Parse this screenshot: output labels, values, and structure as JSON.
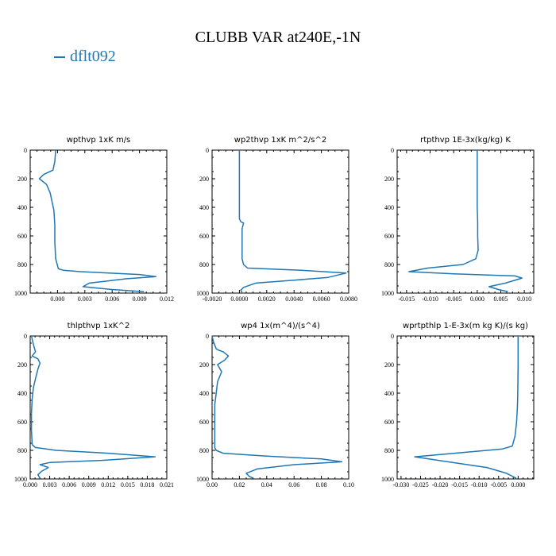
{
  "title": "CLUBB VAR at240E,-1N",
  "legend": {
    "label": "dflt092",
    "color": "#1f77b4"
  },
  "chart_data": [
    {
      "type": "line",
      "title": "wpthvp   1xK m/s",
      "xlim": [
        -0.003,
        0.012
      ],
      "ylim": [
        0,
        1000
      ],
      "y_inverted": true,
      "xticks": [
        {
          "v": 0,
          "label": "0.000"
        },
        {
          "v": 0.003,
          "label": "0.003"
        },
        {
          "v": 0.006,
          "label": "0.006"
        },
        {
          "v": 0.009,
          "label": "0.009"
        },
        {
          "v": 0.012,
          "label": "0.012"
        }
      ],
      "yticks": [
        0,
        200,
        400,
        600,
        800,
        1000
      ],
      "series": [
        {
          "color": "#1f77b4",
          "x": [
            -0.0002,
            -0.0003,
            -0.0005,
            -0.0015,
            -0.002,
            -0.0012,
            -0.0008,
            -0.0006,
            -0.0004,
            -0.0003,
            -0.0003,
            -0.0002,
            0.0001,
            0.0006,
            0.0025,
            0.009,
            0.0108,
            0.0075,
            0.0035,
            0.0028,
            0.006,
            0.0095
          ],
          "y": [
            0,
            80,
            140,
            170,
            200,
            240,
            300,
            360,
            420,
            520,
            640,
            760,
            830,
            840,
            850,
            870,
            885,
            900,
            930,
            955,
            975,
            990
          ]
        }
      ]
    },
    {
      "type": "line",
      "title": "wp2thvp   1xK m^2/s^2",
      "xlim": [
        -0.002,
        0.008
      ],
      "ylim": [
        0,
        1000
      ],
      "y_inverted": true,
      "xticks": [
        {
          "v": -0.002,
          "label": "-0.0020"
        },
        {
          "v": 0,
          "label": "0.0000"
        },
        {
          "v": 0.002,
          "label": "0.0020"
        },
        {
          "v": 0.004,
          "label": "0.0040"
        },
        {
          "v": 0.006,
          "label": "0.0060"
        },
        {
          "v": 0.008,
          "label": "0.0080"
        }
      ],
      "yticks": [
        0,
        200,
        400,
        600,
        800,
        1000
      ],
      "series": [
        {
          "color": "#1f77b4",
          "x": [
            0,
            0,
            0,
            0.0001,
            0.0003,
            0.0002,
            0.0002,
            0.0002,
            0.0003,
            0.0006,
            0.0045,
            0.0078,
            0.0065,
            0.004,
            0.0012,
            0.0003,
            0.0001,
            0.0002
          ],
          "y": [
            0,
            200,
            480,
            500,
            510,
            550,
            650,
            760,
            800,
            825,
            840,
            860,
            890,
            910,
            930,
            960,
            980,
            995
          ]
        }
      ]
    },
    {
      "type": "line",
      "title": "rtpthvp   1E-3x(kg/kg) K",
      "xlim": [
        -0.017,
        0.012
      ],
      "ylim": [
        0,
        1000
      ],
      "y_inverted": true,
      "xticks": [
        {
          "v": -0.015,
          "label": "-0.015"
        },
        {
          "v": -0.01,
          "label": "-0.010"
        },
        {
          "v": -0.005,
          "label": "-0.005"
        },
        {
          "v": 0,
          "label": "0.000"
        },
        {
          "v": 0.005,
          "label": "0.005"
        },
        {
          "v": 0.01,
          "label": "0.010"
        }
      ],
      "yticks": [
        0,
        200,
        400,
        600,
        800,
        1000
      ],
      "series": [
        {
          "color": "#1f77b4",
          "x": [
            0,
            0,
            0,
            0.0001,
            0.0001,
            0.0002,
            -0.0003,
            -0.003,
            -0.0105,
            -0.0145,
            -0.005,
            0.008,
            0.0095,
            0.006,
            0.0025,
            0.0045,
            0.0065
          ],
          "y": [
            0,
            200,
            400,
            500,
            600,
            700,
            760,
            800,
            825,
            850,
            865,
            880,
            895,
            930,
            955,
            975,
            990
          ]
        }
      ]
    },
    {
      "type": "line",
      "title": "thlpthvp   1xK^2",
      "xlim": [
        0,
        0.021
      ],
      "ylim": [
        0,
        1000
      ],
      "y_inverted": true,
      "xticks": [
        {
          "v": 0,
          "label": "0.000"
        },
        {
          "v": 0.003,
          "label": "0.003"
        },
        {
          "v": 0.006,
          "label": "0.006"
        },
        {
          "v": 0.009,
          "label": "0.009"
        },
        {
          "v": 0.012,
          "label": "0.012"
        },
        {
          "v": 0.015,
          "label": "0.015"
        },
        {
          "v": 0.018,
          "label": "0.018"
        },
        {
          "v": 0.021,
          "label": "0.021"
        }
      ],
      "yticks": [
        0,
        200,
        400,
        600,
        800,
        1000
      ],
      "series": [
        {
          "color": "#1f77b4",
          "x": [
            0.0002,
            0.0005,
            0.0008,
            0.0003,
            0.0012,
            0.0015,
            0.0012,
            0.0008,
            0.0005,
            0.0003,
            0.0002,
            0.0002,
            0.0003,
            0.0008,
            0.004,
            0.012,
            0.0192,
            0.011,
            0.003,
            0.0015,
            0.0028,
            0.0018,
            0.0012,
            0.0015
          ],
          "y": [
            0,
            60,
            110,
            140,
            160,
            190,
            230,
            300,
            360,
            440,
            540,
            660,
            760,
            780,
            800,
            820,
            845,
            870,
            885,
            900,
            920,
            945,
            970,
            995
          ]
        }
      ]
    },
    {
      "type": "line",
      "title": "wp4   1x(m^4)/(s^4)",
      "xlim": [
        0,
        0.1
      ],
      "ylim": [
        0,
        1000
      ],
      "y_inverted": true,
      "xticks": [
        {
          "v": 0,
          "label": "0.00"
        },
        {
          "v": 0.02,
          "label": "0.02"
        },
        {
          "v": 0.04,
          "label": "0.04"
        },
        {
          "v": 0.06,
          "label": "0.06"
        },
        {
          "v": 0.08,
          "label": "0.08"
        },
        {
          "v": 0.1,
          "label": "0.10"
        }
      ],
      "yticks": [
        0,
        200,
        400,
        600,
        800,
        1000
      ],
      "series": [
        {
          "color": "#1f77b4",
          "x": [
            0,
            0.001,
            0.003,
            0.005,
            0.008,
            0.012,
            0.009,
            0.004,
            0.007,
            0.004,
            0.003,
            0.002,
            0.002,
            0.002,
            0.002,
            0.002,
            0.003,
            0.008,
            0.04,
            0.08,
            0.095,
            0.06,
            0.033,
            0.025,
            0.027,
            0.03
          ],
          "y": [
            0,
            40,
            90,
            100,
            110,
            140,
            170,
            200,
            250,
            320,
            400,
            480,
            560,
            640,
            720,
            780,
            800,
            820,
            840,
            860,
            880,
            900,
            930,
            960,
            980,
            995
          ]
        }
      ]
    },
    {
      "type": "line",
      "title": "wprtpthlp   1-E-3x(m kg K)/(s kg)",
      "xlim": [
        -0.031,
        0.004
      ],
      "ylim": [
        0,
        1000
      ],
      "y_inverted": true,
      "xticks": [
        {
          "v": -0.03,
          "label": "-0.030"
        },
        {
          "v": -0.025,
          "label": "-0.025"
        },
        {
          "v": -0.02,
          "label": "-0.020"
        },
        {
          "v": -0.015,
          "label": "-0.015"
        },
        {
          "v": -0.01,
          "label": "-0.010"
        },
        {
          "v": -0.005,
          "label": "-0.005"
        },
        {
          "v": 0,
          "label": "0.000"
        }
      ],
      "yticks": [
        0,
        200,
        400,
        600,
        800,
        1000
      ],
      "series": [
        {
          "color": "#1f77b4",
          "x": [
            0,
            0,
            -0.0001,
            -0.0002,
            -0.0004,
            -0.0008,
            -0.0015,
            -0.004,
            -0.012,
            -0.0265,
            -0.018,
            -0.008,
            -0.003,
            -0.0005
          ],
          "y": [
            0,
            200,
            400,
            500,
            600,
            700,
            770,
            790,
            810,
            845,
            880,
            920,
            960,
            995
          ]
        }
      ]
    }
  ]
}
